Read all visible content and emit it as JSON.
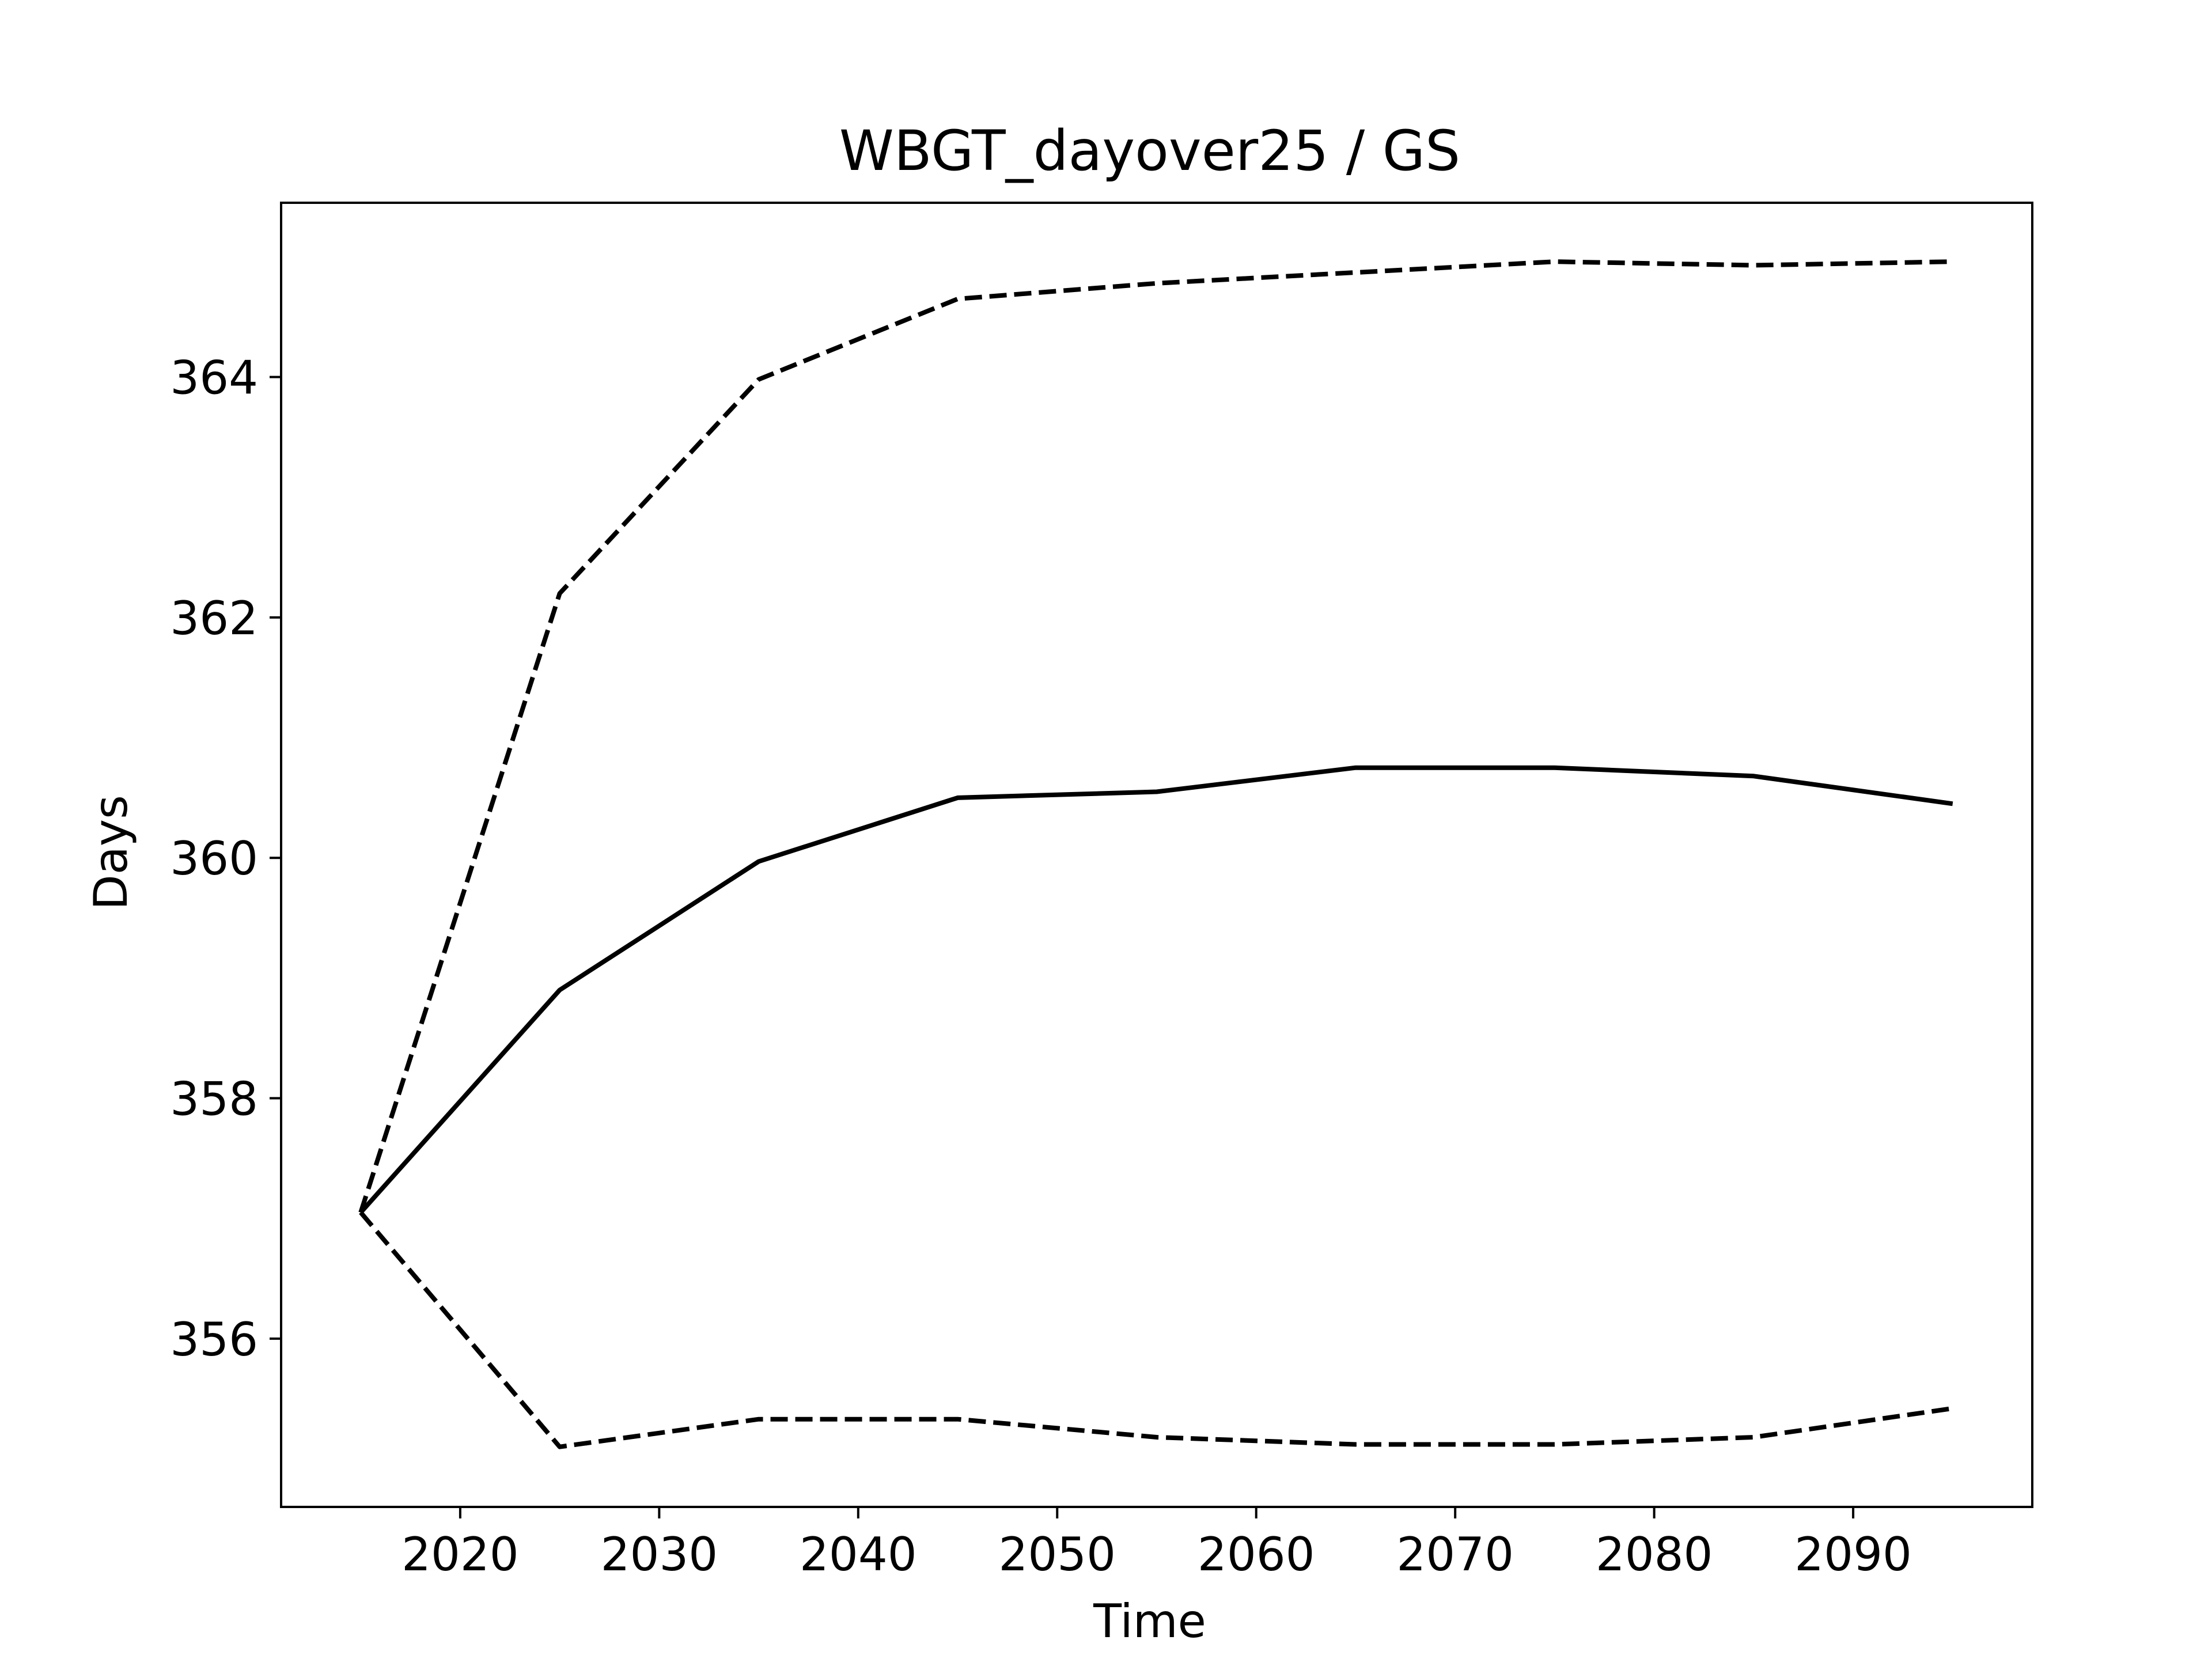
{
  "chart_data": {
    "type": "line",
    "title": "WBGT_dayover25 / GS",
    "xlabel": "Time",
    "ylabel": "Days",
    "xlim": [
      2011,
      2099
    ],
    "ylim": [
      354.6,
      365.45
    ],
    "x_ticks": [
      2020,
      2030,
      2040,
      2050,
      2060,
      2070,
      2080,
      2090
    ],
    "y_ticks": [
      356,
      358,
      360,
      362,
      364
    ],
    "grid": false,
    "legend": "none",
    "x": [
      2015,
      2025,
      2035,
      2045,
      2055,
      2065,
      2075,
      2085,
      2095
    ],
    "series": [
      {
        "style": "solid",
        "color": "#000000",
        "values": [
          357.05,
          358.9,
          359.97,
          360.5,
          360.55,
          360.75,
          360.75,
          360.68,
          360.45
        ]
      },
      {
        "style": "dashed",
        "color": "#000000",
        "values": [
          357.05,
          362.2,
          363.98,
          364.65,
          364.78,
          364.87,
          364.96,
          364.93,
          364.96
        ]
      },
      {
        "style": "dashed",
        "color": "#000000",
        "values": [
          357.05,
          355.1,
          355.33,
          355.33,
          355.18,
          355.12,
          355.12,
          355.18,
          355.42
        ]
      }
    ]
  }
}
